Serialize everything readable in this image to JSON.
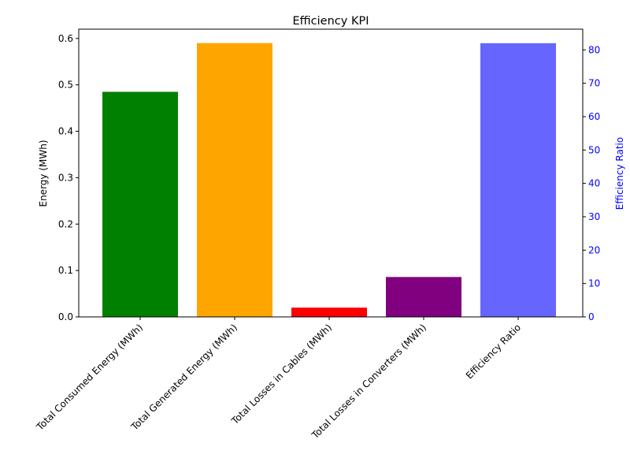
{
  "chart_data": {
    "type": "bar",
    "title": "Efficiency KPI",
    "ylabel": "Energy (MWh)",
    "y2label": "Efficiency Ratio",
    "ylim": [
      0,
      0.62
    ],
    "y2lim": [
      0,
      86.2
    ],
    "yticks": [
      "0.0",
      "0.1",
      "0.2",
      "0.3",
      "0.4",
      "0.5",
      "0.6"
    ],
    "y2ticks": [
      "0",
      "10",
      "20",
      "30",
      "40",
      "50",
      "60",
      "70",
      "80"
    ],
    "categories": [
      "Total Consumed Energy (MWh)",
      "Total Generated Energy (MWh)",
      "Total Losses in Cables (MWh)",
      "Total Losses in Converters (MWh)",
      "Efficiency Ratio"
    ],
    "values": [
      0.485,
      0.59,
      0.02,
      0.086,
      82
    ],
    "axis": [
      "left",
      "left",
      "left",
      "left",
      "right"
    ],
    "colors": [
      "#008000",
      "#ffa500",
      "#ff0000",
      "#800080",
      "#6666ff"
    ]
  }
}
